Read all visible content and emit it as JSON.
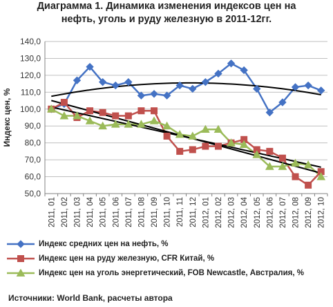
{
  "title": {
    "line1": "Диаграмма 1. Динамика изменения индексов цен на",
    "line2": "нефть, уголь и руду железную в 2011-12гг."
  },
  "source": "Источники: World Bank, расчеты автора",
  "colors": {
    "oil": "#4472C4",
    "ore": "#C0504D",
    "coal": "#9BBB59",
    "trend": "#000000",
    "grid": "#bfbfbf",
    "axis": "#808080"
  },
  "chart_data": {
    "type": "line",
    "title": "Диаграмма 1. Динамика изменения индексов цен на нефть, уголь и руду железную в 2011-12гг.",
    "xlabel": "",
    "ylabel": "Индекс цен, %",
    "ylim": [
      50,
      140
    ],
    "yticks": [
      "50,0",
      "60,0",
      "70,0",
      "80,0",
      "90,0",
      "100,0",
      "110,0",
      "120,0",
      "130,0",
      "140,0"
    ],
    "grid": true,
    "legend": "bottom",
    "categories": [
      "2011, 01",
      "2011, 02",
      "2011, 03",
      "2011, 04",
      "2011, 05",
      "2011, 06",
      "2011, 07",
      "2011, 08",
      "2011, 09",
      "2011, 10",
      "2011, 11",
      "2011, 12",
      "2012, 01",
      "2012, 02",
      "2012, 03",
      "2012, 04",
      "2012, 05",
      "2012, 06",
      "2012, 07",
      "2012, 08",
      "2012, 09",
      "2012, 10"
    ],
    "series": [
      {
        "key": "oil",
        "name": "Индекс средних цен на нефть, %",
        "marker": "diamond",
        "values": [
          100,
          103,
          117,
          125,
          116,
          114,
          116,
          108,
          109,
          108,
          114,
          112,
          116,
          121,
          127,
          123,
          112,
          98,
          104,
          113,
          114,
          111
        ]
      },
      {
        "key": "ore",
        "name": "Индекс цен на руду железную, CFR Китай, %",
        "marker": "square",
        "values": [
          100,
          104,
          95,
          99,
          98,
          96,
          96,
          99,
          99,
          84,
          75,
          76,
          78,
          78,
          80,
          82,
          76,
          75,
          71,
          60,
          55,
          63
        ]
      },
      {
        "key": "coal",
        "name": "Индекс цен на уголь энергетический, FOB Newcastle, Австралия, %",
        "marker": "triangle",
        "values": [
          100,
          96,
          96,
          93,
          90,
          91,
          91,
          91,
          93,
          90,
          85,
          84,
          88,
          88,
          80,
          79,
          73,
          66,
          66,
          68,
          67,
          60
        ]
      }
    ],
    "trendlines": [
      {
        "series": "oil",
        "type": "poly2"
      },
      {
        "series": "ore",
        "type": "linear"
      },
      {
        "series": "coal",
        "type": "linear"
      }
    ]
  }
}
